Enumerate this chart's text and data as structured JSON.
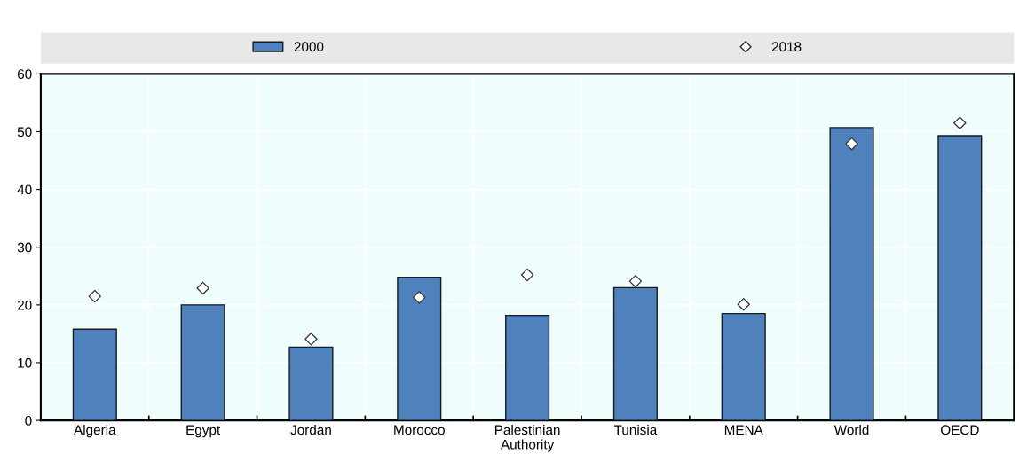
{
  "chart_data": {
    "type": "bar",
    "categories": [
      "Algeria",
      "Egypt",
      "Jordan",
      "Morocco",
      "Palestinian\nAuthority",
      "Tunisia",
      "MENA",
      "World",
      "OECD"
    ],
    "series": [
      {
        "name": "2000",
        "color": "#4f81bd",
        "values": [
          15.8,
          20.0,
          12.7,
          24.8,
          18.2,
          23.0,
          18.5,
          50.7,
          49.3
        ]
      },
      {
        "name": "2018",
        "type": "scatter",
        "color": "#ffffff",
        "marker": "diamond",
        "values": [
          21.5,
          22.9,
          14.1,
          21.3,
          25.2,
          24.1,
          20.1,
          47.9,
          51.5
        ]
      }
    ],
    "ylim": [
      0,
      60
    ],
    "yticks": [
      0,
      10,
      20,
      30,
      40,
      50,
      60
    ],
    "grid": true,
    "legend": "top"
  }
}
